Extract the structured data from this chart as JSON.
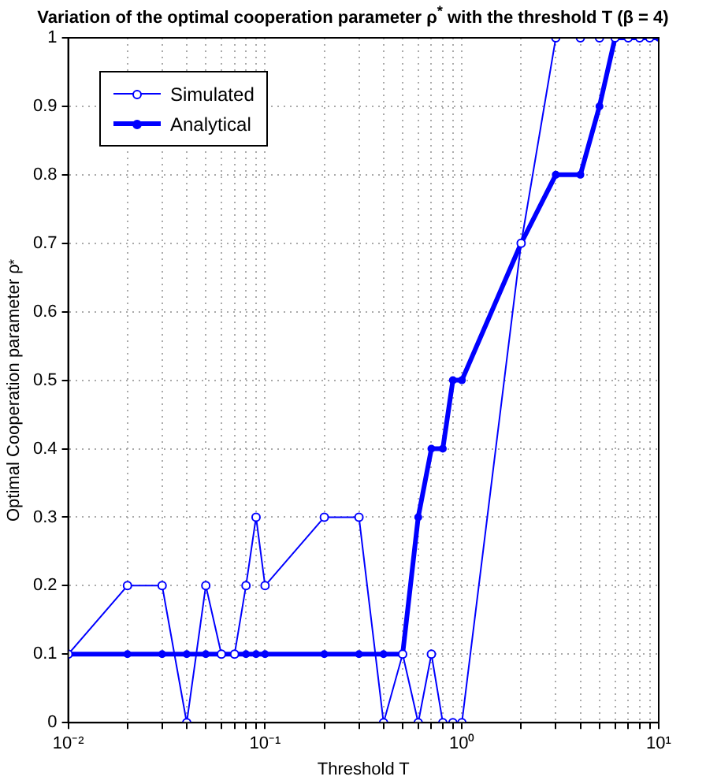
{
  "chart_data": {
    "type": "line",
    "title": "Variation of the optimal cooperation parameter ρ$^{*}$ with the threshold T (β = 4)",
    "xlabel": "Threshold T",
    "ylabel": "Optimal Cooperation parameter ρ$^{*}$",
    "x": [
      0.01,
      0.02,
      0.03,
      0.04,
      0.05,
      0.06,
      0.07,
      0.08,
      0.09,
      0.1,
      0.2,
      0.3,
      0.4,
      0.5,
      0.6,
      0.7,
      0.8,
      0.9,
      1,
      2,
      3,
      4,
      5,
      6,
      7,
      8,
      9,
      10
    ],
    "series": [
      {
        "name": "Simulated",
        "color": "#0000ff",
        "marker": "circle",
        "values": [
          0.1,
          0.2,
          0.2,
          0,
          0.2,
          0.1,
          0.1,
          0.2,
          0.3,
          0.2,
          0.3,
          0.3,
          0,
          0.1,
          0,
          0.1,
          0,
          0,
          0,
          0.7,
          1,
          1,
          1,
          1,
          1,
          1,
          1,
          null
        ]
      },
      {
        "name": "Analytical",
        "color": "#0000ff",
        "marker": "circle",
        "values": [
          0.1,
          0.1,
          0.1,
          0.1,
          0.1,
          0.1,
          0.1,
          0.1,
          0.1,
          0.1,
          0.1,
          0.1,
          0.1,
          0.1,
          0.3,
          0.4,
          0.4,
          0.5,
          0.5,
          0.7,
          0.8,
          0.8,
          0.9,
          1,
          1,
          1,
          1,
          1
        ]
      }
    ],
    "log": "x",
    "xlim": [
      0.01,
      10
    ],
    "xticks": [
      {
        "value": 0.01,
        "label": "10⁻²"
      },
      {
        "value": 0.02,
        "label": null
      },
      {
        "value": 0.03,
        "label": null
      },
      {
        "value": 0.04,
        "label": null
      },
      {
        "value": 0.05,
        "label": null
      },
      {
        "value": 0.06,
        "label": null
      },
      {
        "value": 0.07,
        "label": null
      },
      {
        "value": 0.08,
        "label": null
      },
      {
        "value": 0.09,
        "label": null
      },
      {
        "value": 0.1,
        "label": "10⁻¹"
      },
      {
        "value": 0.2,
        "label": null
      },
      {
        "value": 0.3,
        "label": null
      },
      {
        "value": 0.4,
        "label": null
      },
      {
        "value": 0.5,
        "label": null
      },
      {
        "value": 0.6,
        "label": null
      },
      {
        "value": 0.7,
        "label": null
      },
      {
        "value": 0.8,
        "label": null
      },
      {
        "value": 0.9,
        "label": null
      },
      {
        "value": 1,
        "label": "10⁰"
      },
      {
        "value": 2,
        "label": null
      },
      {
        "value": 3,
        "label": null
      },
      {
        "value": 4,
        "label": null
      },
      {
        "value": 5,
        "label": null
      },
      {
        "value": 6,
        "label": null
      },
      {
        "value": 7,
        "label": null
      },
      {
        "value": 8,
        "label": null
      },
      {
        "value": 9,
        "label": null
      },
      {
        "value": 10,
        "label": "10¹"
      }
    ],
    "ylim": [
      0,
      1
    ],
    "yticks": [
      0,
      0.1,
      0.2,
      0.3,
      0.4,
      0.5,
      0.6,
      0.7,
      0.8,
      0.9,
      1
    ],
    "grid": true,
    "legend": "top left",
    "line_style": "solid"
  }
}
